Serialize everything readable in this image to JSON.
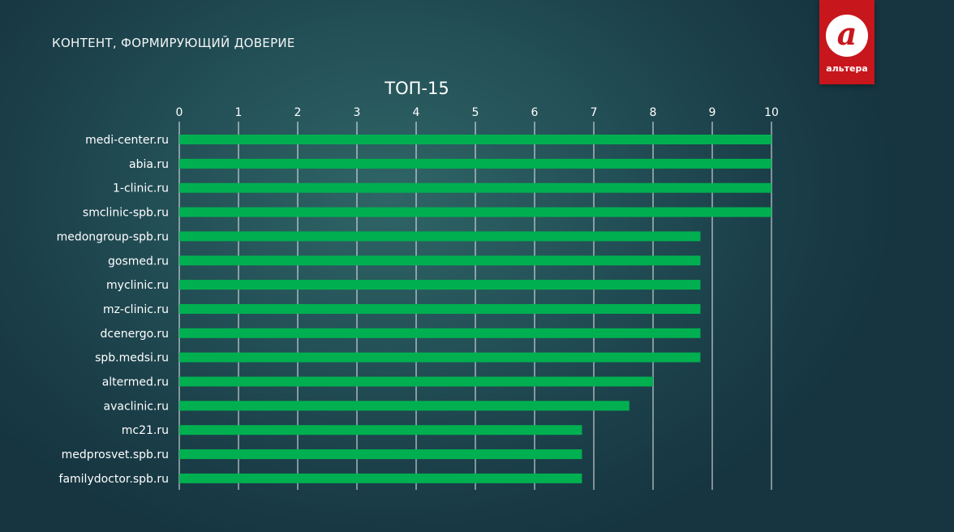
{
  "slide": {
    "title": "КОНТЕНТ, ФОРМИРУЮЩИЙ ДОВЕРИЕ"
  },
  "logo": {
    "glyph": "а",
    "text": "альтера",
    "color": "#c8161d"
  },
  "chart_data": {
    "type": "bar",
    "orientation": "horizontal",
    "title": "ТОП-15",
    "categories": [
      "medi-center.ru",
      "abia.ru",
      "1-clinic.ru",
      "smclinic-spb.ru",
      "medongroup-spb.ru",
      "gosmed.ru",
      "myclinic.ru",
      "mz-clinic.ru",
      "dcenergo.ru",
      "spb.medsi.ru",
      "altermed.ru",
      "avaclinic.ru",
      "mc21.ru",
      "medprosvet.spb.ru",
      "familydoctor.spb.ru"
    ],
    "values": [
      10,
      10,
      10,
      10,
      8.8,
      8.8,
      8.8,
      8.8,
      8.8,
      8.8,
      8,
      7.6,
      6.8,
      6.8,
      6.8
    ],
    "xlim": [
      0,
      10
    ],
    "xticks": [
      "0",
      "1",
      "2",
      "3",
      "4",
      "5",
      "6",
      "7",
      "8",
      "9",
      "10"
    ],
    "x_axis_position": "top",
    "grid": "vertical",
    "legend": "none",
    "bar_color": "#00b050",
    "grid_color": "#ffffff"
  }
}
